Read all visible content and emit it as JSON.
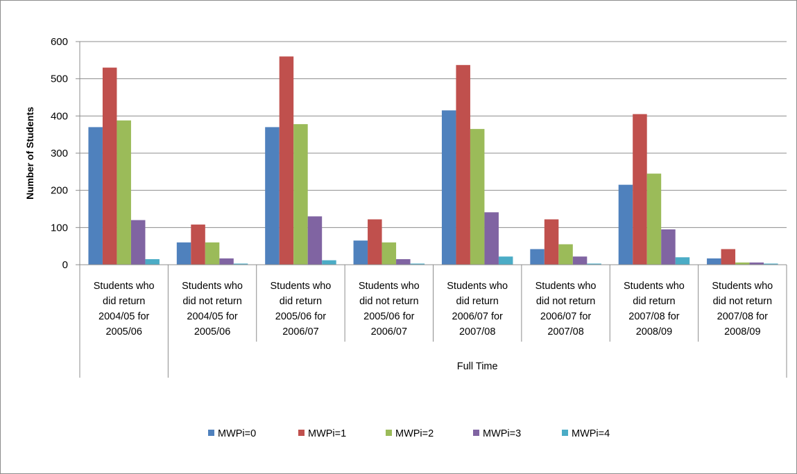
{
  "chart_data": {
    "type": "bar",
    "ylabel": "Number of Students",
    "ylim": [
      0,
      600
    ],
    "yticks": [
      0,
      100,
      200,
      300,
      400,
      500,
      600
    ],
    "grid": true,
    "legend_position": "bottom",
    "categories": [
      "Students who did return 2004/05 for 2005/06",
      "Students who did not return 2004/05 for 2005/06",
      "Students who did return 2005/06 for 2006/07",
      "Students who did not return 2005/06 for 2006/07",
      "Students who did return 2006/07 for 2007/08",
      "Students who did not return 2006/07 for 2007/08",
      "Students who did return 2007/08 for 2008/09",
      "Students who did not return 2007/08 for 2008/09"
    ],
    "category_lines": [
      [
        "Students who",
        "did return",
        "2004/05 for",
        "2005/06"
      ],
      [
        "Students who",
        "did not return",
        "2004/05 for",
        "2005/06"
      ],
      [
        "Students who",
        "did return",
        "2005/06 for",
        "2006/07"
      ],
      [
        "Students who",
        "did not return",
        "2005/06 for",
        "2006/07"
      ],
      [
        "Students who",
        "did return",
        "2006/07 for",
        "2007/08"
      ],
      [
        "Students who",
        "did not return",
        "2006/07 for",
        "2007/08"
      ],
      [
        "Students who",
        "did return",
        "2007/08 for",
        "2008/09"
      ],
      [
        "Students who",
        "did not return",
        "2007/08 for",
        "2008/09"
      ]
    ],
    "group_label": "Full Time",
    "series": [
      {
        "name": "MWPi=0",
        "color": "#4f81bd",
        "values": [
          370,
          60,
          370,
          65,
          415,
          42,
          215,
          17
        ]
      },
      {
        "name": "MWPi=1",
        "color": "#c0504d",
        "values": [
          530,
          108,
          560,
          122,
          537,
          122,
          405,
          42
        ]
      },
      {
        "name": "MWPi=2",
        "color": "#9bbb59",
        "values": [
          388,
          60,
          378,
          60,
          365,
          55,
          245,
          6
        ]
      },
      {
        "name": "MWPi=3",
        "color": "#8064a2",
        "values": [
          120,
          17,
          130,
          15,
          141,
          22,
          95,
          6
        ]
      },
      {
        "name": "MWPi=4",
        "color": "#4bacc6",
        "values": [
          15,
          3,
          12,
          3,
          22,
          3,
          20,
          3
        ]
      }
    ]
  }
}
